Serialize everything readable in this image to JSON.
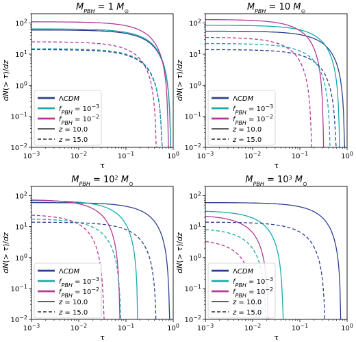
{
  "colors": {
    "lcdm": "#2c3e8f",
    "f1e3": "#17a9a9",
    "f1e2": "#b0389a"
  },
  "legend": [
    "ΛCDM",
    "f_PBH = 10^-3",
    "f_PBH = 10^-2",
    "z = 10.0",
    "z = 15.0"
  ],
  "chart_data": [
    {
      "type": "line",
      "title": "M_PBH = 1 M⊙",
      "xlabel": "τ",
      "ylabel": "dN(>τ)/dz",
      "xscale": "log",
      "yscale": "log",
      "xlim": [
        0.001,
        1
      ],
      "ylim": [
        0.01,
        200
      ],
      "xticks": [
        "10^-3",
        "10^-2",
        "10^-1",
        "10^0"
      ],
      "yticks": [
        "10^-2",
        "10^-1",
        "10^0",
        "10^1",
        "10^2"
      ],
      "legend_loc": "lower left",
      "series": [
        {
          "model": "ΛCDM",
          "z": "10.0",
          "N0": 60,
          "tc": 0.9
        },
        {
          "model": "f1e-3",
          "z": "10.0",
          "N0": 65,
          "tc": 0.9
        },
        {
          "model": "f1e-2",
          "z": "10.0",
          "N0": 110,
          "tc": 0.8
        },
        {
          "model": "ΛCDM",
          "z": "15.0",
          "N0": 14,
          "tc": 0.6
        },
        {
          "model": "f1e-3",
          "z": "15.0",
          "N0": 15,
          "tc": 0.6
        },
        {
          "model": "f1e-2",
          "z": "15.0",
          "N0": 25,
          "tc": 0.45
        }
      ]
    },
    {
      "type": "line",
      "title": "M_PBH = 10 M⊙",
      "xlabel": "τ",
      "ylabel": "dN(>τ)/dz",
      "xscale": "log",
      "yscale": "log",
      "xlim": [
        0.001,
        1
      ],
      "ylim": [
        0.01,
        200
      ],
      "xticks": [
        "10^-3",
        "10^-2",
        "10^-1",
        "10^0"
      ],
      "yticks": [
        "10^-2",
        "10^-1",
        "10^0",
        "10^1",
        "10^2"
      ],
      "legend_loc": "lower left",
      "series": [
        {
          "model": "ΛCDM",
          "z": "10.0",
          "N0": 55,
          "tc": 0.9
        },
        {
          "model": "f1e-3",
          "z": "10.0",
          "N0": 85,
          "tc": 0.7
        },
        {
          "model": "f1e-2",
          "z": "10.0",
          "N0": 130,
          "tc": 0.32
        },
        {
          "model": "ΛCDM",
          "z": "15.0",
          "N0": 14,
          "tc": 0.6
        },
        {
          "model": "f1e-3",
          "z": "15.0",
          "N0": 22,
          "tc": 0.45
        },
        {
          "model": "f1e-2",
          "z": "15.0",
          "N0": 35,
          "tc": 0.18
        }
      ]
    },
    {
      "type": "line",
      "title": "M_PBH = 10^2 M⊙",
      "xlabel": "τ",
      "ylabel": "dN(>τ)/dz",
      "xscale": "log",
      "yscale": "log",
      "xlim": [
        0.001,
        1
      ],
      "ylim": [
        0.01,
        200
      ],
      "xticks": [
        "10^-3",
        "10^-2",
        "10^-1",
        "10^0"
      ],
      "yticks": [
        "10^-2",
        "10^-1",
        "10^0",
        "10^1",
        "10^2"
      ],
      "legend_loc": "lower left",
      "series": [
        {
          "model": "ΛCDM",
          "z": "10.0",
          "N0": 60,
          "tc": 0.85
        },
        {
          "model": "f1e-3",
          "z": "10.0",
          "N0": 70,
          "tc": 0.18
        },
        {
          "model": "f1e-2",
          "z": "10.0",
          "N0": 75,
          "tc": 0.075
        },
        {
          "model": "ΛCDM",
          "z": "15.0",
          "N0": 14,
          "tc": 0.45
        },
        {
          "model": "f1e-3",
          "z": "15.0",
          "N0": 18,
          "tc": 0.08
        },
        {
          "model": "f1e-2",
          "z": "15.0",
          "N0": 25,
          "tc": 0.035
        }
      ]
    },
    {
      "type": "line",
      "title": "M_PBH = 10^3 M⊙",
      "xlabel": "τ",
      "ylabel": "dN(>τ)/dz",
      "xscale": "log",
      "yscale": "log",
      "xlim": [
        0.001,
        1
      ],
      "ylim": [
        0.01,
        200
      ],
      "xticks": [
        "10^-3",
        "10^-2",
        "10^-1",
        "10^0"
      ],
      "yticks": [
        "10^-2",
        "10^-1",
        "10^0",
        "10^1",
        "10^2"
      ],
      "legend_loc": "lower left",
      "series": [
        {
          "model": "ΛCDM",
          "z": "10.0",
          "N0": 60,
          "tc": 0.75
        },
        {
          "model": "f1e-3",
          "z": "10.0",
          "N0": 33,
          "tc": 0.045
        },
        {
          "model": "f1e-2",
          "z": "10.0",
          "N0": 24,
          "tc": 0.022
        },
        {
          "model": "ΛCDM",
          "z": "15.0",
          "N0": 14,
          "tc": 0.35
        },
        {
          "model": "f1e-3",
          "z": "15.0",
          "N0": 9,
          "tc": 0.02
        },
        {
          "model": "f1e-2",
          "z": "15.0",
          "N0": 4,
          "tc": 0.012
        }
      ]
    }
  ]
}
